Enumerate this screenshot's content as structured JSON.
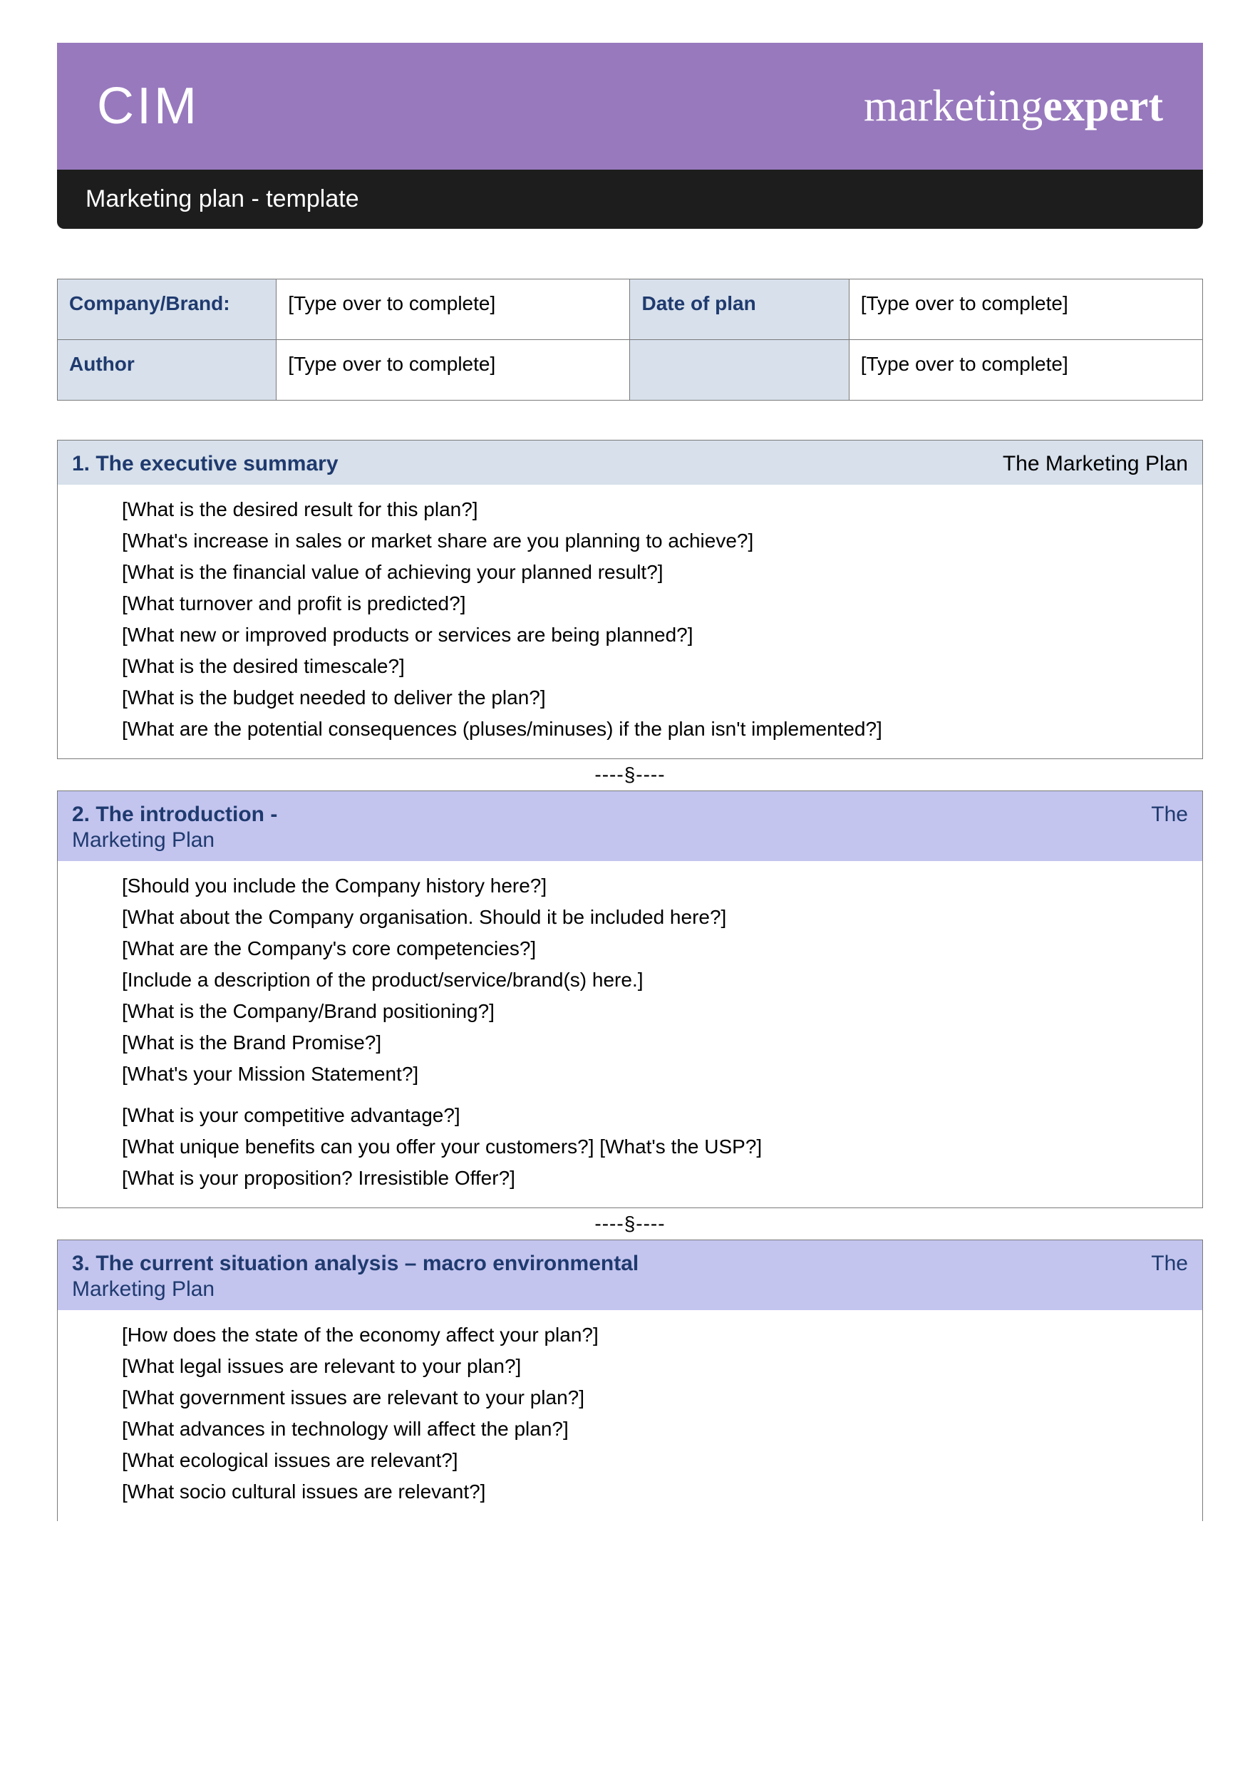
{
  "header": {
    "logo_text": "CIM",
    "brand_light": "marketing",
    "brand_bold": "expert",
    "title": "Marketing plan - template"
  },
  "colors": {
    "banner": "#9879bd",
    "titlebar": "#1d1d1d",
    "blue_header": "#d7e0eb",
    "purple_header": "#c3c5ef",
    "label_text": "#1f3a6e"
  },
  "meta": {
    "rows": [
      {
        "label": "Company/Brand:",
        "value": "[Type over to complete]",
        "label2": "Date of plan",
        "value2": "[Type over to complete]"
      },
      {
        "label": "Author",
        "value": "[Type over to complete]",
        "label2": "",
        "value2": "[Type over to complete]"
      }
    ]
  },
  "divider_text": "----§----",
  "sections": [
    {
      "style": "blue",
      "number_title": "1.  The executive summary",
      "right_text": "The Marketing Plan",
      "subtitle": "",
      "questions": [
        "[What is the desired result for this plan?]",
        "[What's increase in sales or market share are you planning to achieve?]",
        "[What is the financial value of achieving your planned result?]",
        "[What turnover and profit is predicted?]",
        "[What new or improved products or services are being planned?]",
        "[What is the desired timescale?]",
        "[What is the budget needed to deliver the plan?]",
        "[What are the potential consequences (pluses/minuses) if the plan isn't implemented?]"
      ],
      "groups": []
    },
    {
      "style": "purple",
      "number_title": "2.  The introduction -",
      "right_text": "The",
      "subtitle": "Marketing Plan",
      "questions": [
        "[Should you include the Company history here?]",
        "[What about the Company organisation.  Should it be included here?]",
        "[What are the Company's core competencies?]",
        "[Include a description of the product/service/brand(s) here.]",
        "[What is the Company/Brand positioning?]",
        "[What is the Brand Promise?]",
        "[What's your Mission Statement?]"
      ],
      "groups": [
        [
          "[What is your competitive advantage?]",
          "[What unique benefits can you offer your customers?]  [What's the USP?]",
          "[What is your proposition? Irresistible Offer?]"
        ]
      ]
    },
    {
      "style": "purple",
      "number_title": "3. The current situation analysis – macro environmental",
      "right_text": "The",
      "subtitle": "Marketing Plan",
      "questions": [
        "[How does the state of the economy affect your plan?]",
        "[What legal issues are relevant to your plan?]",
        "[What government issues are relevant to your plan?]",
        "[What advances in technology will affect the plan?]",
        "[What ecological issues are relevant?]",
        "[What socio cultural issues are relevant?]"
      ],
      "groups": []
    }
  ]
}
